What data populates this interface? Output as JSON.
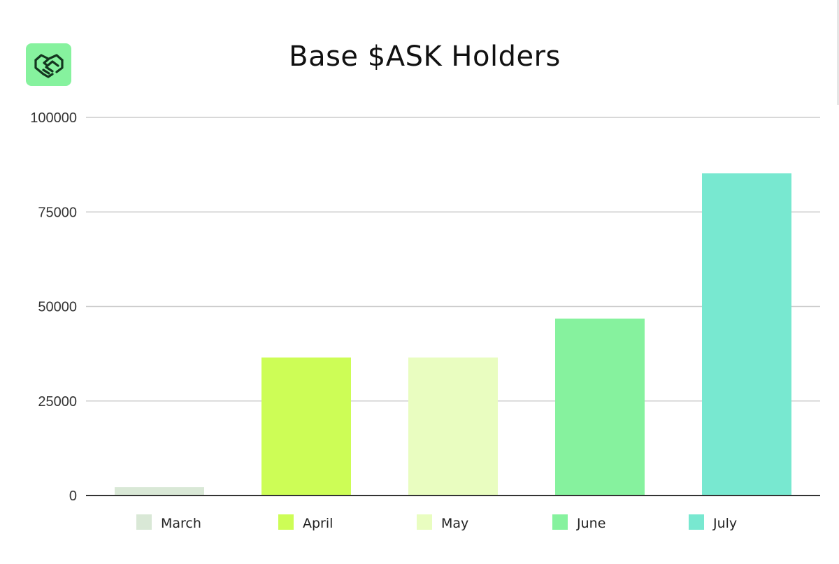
{
  "logo": {
    "icon": "handshake-icon",
    "bg_color": "#86f29e",
    "fg_color": "#14361f"
  },
  "chart_data": {
    "type": "bar",
    "title": "Base $ASK Holders",
    "categories": [
      "March",
      "April",
      "May",
      "June",
      "July"
    ],
    "values": [
      2200,
      36500,
      36500,
      46800,
      85200
    ],
    "colors": [
      "#d9e8d6",
      "#cdfd56",
      "#e9fdc0",
      "#86f29e",
      "#78e8d0"
    ],
    "ylim": [
      0,
      100000
    ],
    "yticks": [
      "0",
      "25000",
      "50000",
      "75000",
      "100000"
    ],
    "xlabel": "",
    "ylabel": "",
    "grid": true,
    "legend": "bottom"
  }
}
